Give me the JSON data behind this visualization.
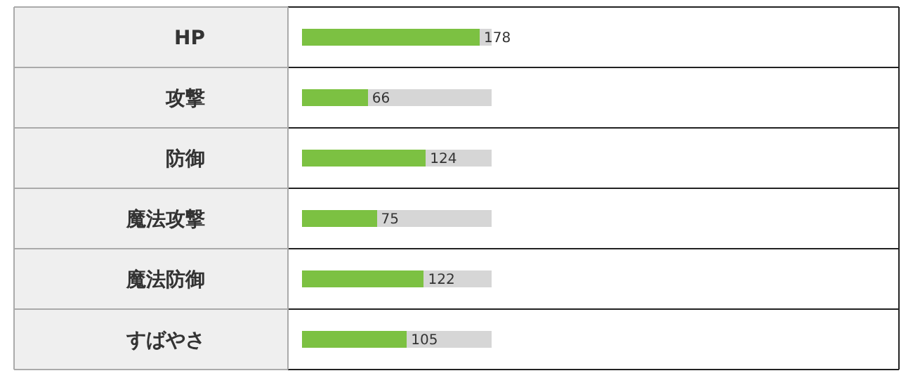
{
  "chart_data": {
    "type": "bar",
    "orientation": "horizontal",
    "categories": [
      "HP",
      "攻撃",
      "防御",
      "魔法攻撃",
      "魔法防御",
      "すばやさ"
    ],
    "values": [
      178,
      66,
      124,
      75,
      122,
      105
    ],
    "color": "#7cc142",
    "xlim": [
      0,
      190
    ],
    "data_labels": true,
    "tick_labels": "y",
    "grid": false,
    "legend": false
  }
}
